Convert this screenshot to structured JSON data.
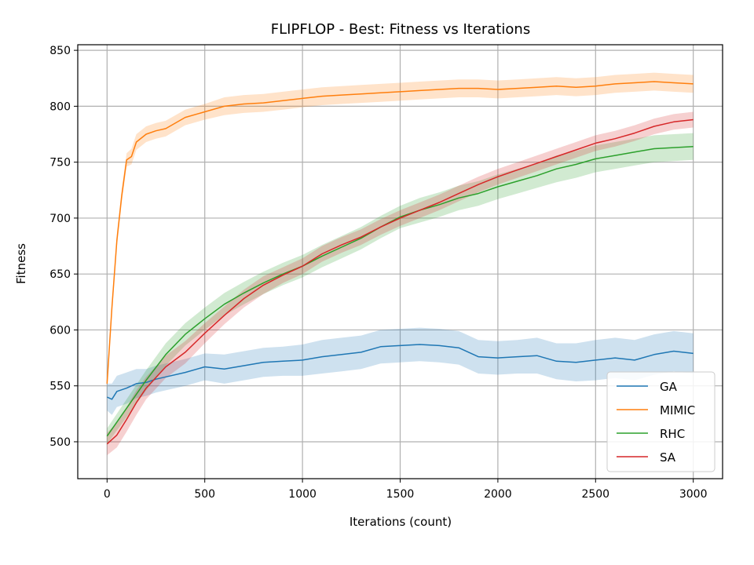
{
  "chart_data": {
    "type": "line",
    "title": "FLIPFLOP - Best: Fitness vs Iterations",
    "xlabel": "Iterations (count)",
    "ylabel": "Fitness",
    "xlim": [
      -150,
      3150
    ],
    "ylim": [
      467,
      855
    ],
    "xticks": [
      0,
      500,
      1000,
      1500,
      2000,
      2500,
      3000
    ],
    "yticks": [
      500,
      550,
      600,
      650,
      700,
      750,
      800,
      850
    ],
    "grid": true,
    "legend_position": "lower-right",
    "series": [
      {
        "name": "GA",
        "color": "#1f77b4",
        "x": [
          0,
          25,
          50,
          100,
          150,
          200,
          250,
          300,
          400,
          500,
          600,
          700,
          800,
          900,
          1000,
          1100,
          1200,
          1300,
          1400,
          1500,
          1600,
          1700,
          1800,
          1900,
          2000,
          2100,
          2200,
          2300,
          2400,
          2500,
          2600,
          2700,
          2800,
          2900,
          3000
        ],
        "y": [
          540,
          538,
          545,
          548,
          552,
          553,
          556,
          558,
          562,
          567,
          565,
          568,
          571,
          572,
          573,
          576,
          578,
          580,
          585,
          586,
          587,
          586,
          584,
          576,
          575,
          576,
          577,
          572,
          571,
          573,
          575,
          573,
          578,
          581,
          579
        ],
        "band": [
          12,
          14,
          14,
          14,
          13,
          12,
          12,
          12,
          12,
          12,
          13,
          13,
          13,
          13,
          14,
          15,
          15,
          15,
          15,
          15,
          15,
          15,
          15,
          15,
          15,
          15,
          16,
          16,
          17,
          18,
          18,
          18,
          18,
          18,
          18
        ]
      },
      {
        "name": "MIMIC",
        "color": "#ff7f0e",
        "x": [
          0,
          25,
          50,
          75,
          100,
          125,
          150,
          200,
          250,
          300,
          400,
          500,
          600,
          700,
          800,
          900,
          1000,
          1100,
          1200,
          1300,
          1400,
          1500,
          1600,
          1700,
          1800,
          1900,
          2000,
          2100,
          2200,
          2300,
          2400,
          2500,
          2600,
          2700,
          2800,
          2900,
          3000
        ],
        "y": [
          552,
          620,
          680,
          720,
          752,
          755,
          768,
          775,
          778,
          780,
          790,
          795,
          800,
          802,
          803,
          805,
          807,
          809,
          810,
          811,
          812,
          813,
          814,
          815,
          816,
          816,
          815,
          816,
          817,
          818,
          817,
          818,
          820,
          821,
          822,
          821,
          820
        ],
        "band": [
          5,
          6,
          6,
          6,
          6,
          7,
          7,
          7,
          7,
          7,
          7,
          7,
          8,
          8,
          8,
          8,
          8,
          8,
          8,
          8,
          8,
          8,
          8,
          8,
          8,
          8,
          8,
          8,
          8,
          8,
          8,
          8,
          8,
          8,
          8,
          8,
          8
        ]
      },
      {
        "name": "RHC",
        "color": "#2ca02c",
        "x": [
          0,
          100,
          200,
          300,
          400,
          500,
          600,
          700,
          800,
          900,
          1000,
          1100,
          1200,
          1300,
          1400,
          1500,
          1600,
          1700,
          1800,
          1900,
          2000,
          2100,
          2200,
          2300,
          2400,
          2500,
          2600,
          2700,
          2800,
          2900,
          3000
        ],
        "y": [
          505,
          530,
          555,
          578,
          596,
          610,
          623,
          633,
          642,
          650,
          657,
          666,
          674,
          682,
          692,
          701,
          707,
          712,
          718,
          722,
          728,
          733,
          738,
          744,
          748,
          753,
          756,
          759,
          762,
          763,
          764
        ],
        "band": [
          7,
          8,
          9,
          10,
          10,
          10,
          10,
          10,
          10,
          10,
          10,
          10,
          10,
          10,
          10,
          10,
          11,
          11,
          11,
          11,
          11,
          11,
          11,
          12,
          12,
          12,
          12,
          12,
          12,
          12,
          12
        ]
      },
      {
        "name": "SA",
        "color": "#d62728",
        "x": [
          0,
          50,
          100,
          150,
          200,
          300,
          400,
          500,
          600,
          700,
          800,
          900,
          1000,
          1100,
          1200,
          1300,
          1400,
          1500,
          1600,
          1700,
          1800,
          1900,
          2000,
          2100,
          2200,
          2300,
          2400,
          2500,
          2600,
          2700,
          2800,
          2900,
          3000
        ],
        "y": [
          498,
          506,
          520,
          535,
          548,
          567,
          580,
          597,
          613,
          628,
          640,
          649,
          657,
          668,
          676,
          683,
          692,
          700,
          707,
          714,
          722,
          730,
          737,
          743,
          749,
          755,
          761,
          767,
          771,
          776,
          782,
          786,
          788
        ],
        "band": [
          10,
          11,
          11,
          11,
          10,
          10,
          10,
          9,
          8,
          8,
          8,
          7,
          7,
          7,
          7,
          7,
          7,
          7,
          7,
          7,
          7,
          7,
          7,
          7,
          7,
          7,
          7,
          7,
          7,
          7,
          7,
          7,
          7
        ]
      }
    ]
  }
}
